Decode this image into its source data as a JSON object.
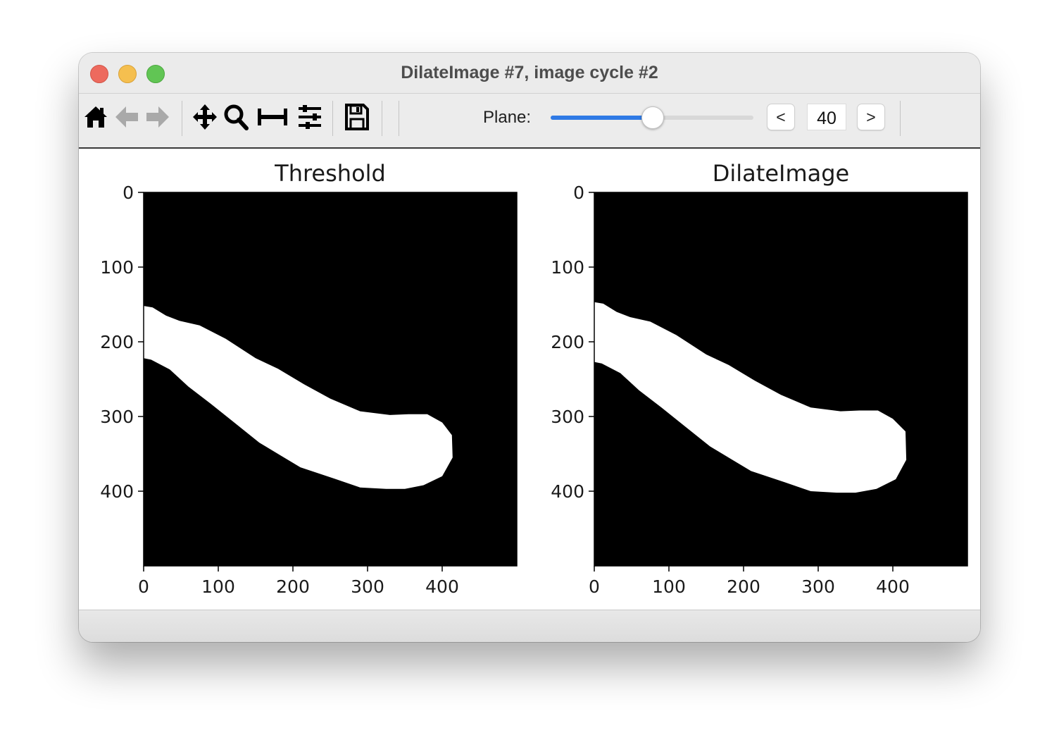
{
  "window": {
    "title": "DilateImage #7, image cycle #2"
  },
  "toolbar": {
    "icons": [
      "home-icon",
      "back-arrow-icon",
      "forward-arrow-icon",
      "pan-icon",
      "zoom-icon",
      "subplots-icon",
      "configure-icon",
      "save-icon"
    ],
    "plane_label": "Plane:",
    "plane_value": "40",
    "plane_fraction": 0.5,
    "prev_label": "<",
    "next_label": ">"
  },
  "colors": {
    "accent": "#2f7ae5",
    "mask_background": "#000000",
    "mask_foreground": "#ffffff"
  },
  "chart_data": [
    {
      "type": "image",
      "title": "Threshold",
      "xlim": [
        0,
        500
      ],
      "ylim": [
        500,
        0
      ],
      "xticks": [
        0,
        100,
        200,
        300,
        400
      ],
      "yticks": [
        0,
        100,
        200,
        300,
        400
      ],
      "xtick_labels": [
        "0",
        "100",
        "200",
        "300",
        "400"
      ],
      "ytick_labels": [
        "0",
        "100",
        "200",
        "300",
        "400"
      ],
      "mask_outline": [
        [
          0,
          152
        ],
        [
          12,
          154
        ],
        [
          30,
          165
        ],
        [
          48,
          172
        ],
        [
          75,
          178
        ],
        [
          110,
          196
        ],
        [
          150,
          222
        ],
        [
          180,
          236
        ],
        [
          215,
          257
        ],
        [
          250,
          276
        ],
        [
          290,
          293
        ],
        [
          330,
          298
        ],
        [
          355,
          297
        ],
        [
          380,
          297
        ],
        [
          400,
          308
        ],
        [
          413,
          325
        ],
        [
          414,
          355
        ],
        [
          400,
          380
        ],
        [
          375,
          392
        ],
        [
          350,
          397
        ],
        [
          325,
          397
        ],
        [
          290,
          395
        ],
        [
          255,
          383
        ],
        [
          210,
          368
        ],
        [
          185,
          353
        ],
        [
          155,
          335
        ],
        [
          120,
          307
        ],
        [
          90,
          283
        ],
        [
          60,
          260
        ],
        [
          35,
          237
        ],
        [
          10,
          224
        ],
        [
          0,
          222
        ]
      ]
    },
    {
      "type": "image",
      "title": "DilateImage",
      "xlim": [
        0,
        500
      ],
      "ylim": [
        500,
        0
      ],
      "xticks": [
        0,
        100,
        200,
        300,
        400
      ],
      "yticks": [
        0,
        100,
        200,
        300,
        400
      ],
      "xtick_labels": [
        "0",
        "100",
        "200",
        "300",
        "400"
      ],
      "ytick_labels": [
        "0",
        "100",
        "200",
        "300",
        "400"
      ],
      "mask_outline": [
        [
          0,
          147
        ],
        [
          12,
          149
        ],
        [
          30,
          160
        ],
        [
          48,
          167
        ],
        [
          75,
          173
        ],
        [
          110,
          191
        ],
        [
          150,
          217
        ],
        [
          180,
          231
        ],
        [
          215,
          252
        ],
        [
          250,
          271
        ],
        [
          290,
          288
        ],
        [
          330,
          293
        ],
        [
          355,
          292
        ],
        [
          380,
          292
        ],
        [
          400,
          303
        ],
        [
          417,
          320
        ],
        [
          418,
          358
        ],
        [
          404,
          384
        ],
        [
          378,
          397
        ],
        [
          350,
          402
        ],
        [
          325,
          402
        ],
        [
          290,
          400
        ],
        [
          255,
          388
        ],
        [
          210,
          373
        ],
        [
          185,
          358
        ],
        [
          155,
          340
        ],
        [
          120,
          312
        ],
        [
          90,
          288
        ],
        [
          60,
          265
        ],
        [
          35,
          242
        ],
        [
          10,
          229
        ],
        [
          0,
          227
        ]
      ]
    }
  ]
}
